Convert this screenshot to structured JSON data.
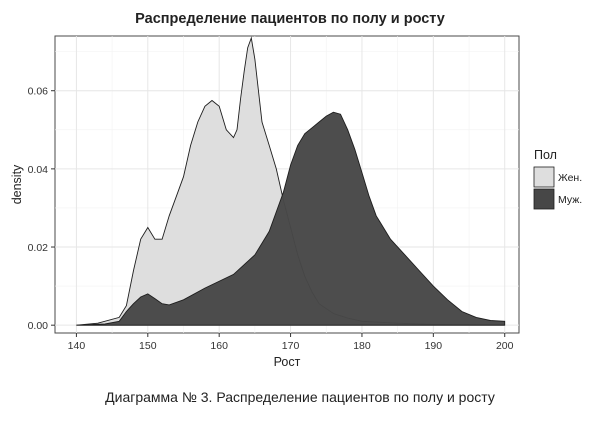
{
  "caption": "Диаграмма № 3. Распределение пациентов по полу и росту",
  "chart_data": {
    "type": "area",
    "title": "Распределение пациентов по полу и росту",
    "xlabel": "Рост",
    "ylabel": "density",
    "xlim": [
      137,
      202
    ],
    "ylim": [
      -0.002,
      0.074
    ],
    "xticks": [
      140,
      150,
      160,
      170,
      180,
      190,
      200
    ],
    "yticks": [
      0.0,
      0.02,
      0.04,
      0.06
    ],
    "ytick_labels": [
      "0.00",
      "0.02",
      "0.04",
      "0.06"
    ],
    "grid": true,
    "legend": {
      "title": "Пол",
      "position": "right"
    },
    "series": [
      {
        "name": "Жен.",
        "color": "#dedede",
        "x": [
          140,
          143,
          146,
          147,
          148,
          149,
          150,
          151,
          152,
          153,
          154,
          155,
          156,
          157,
          158,
          159,
          160,
          161,
          162,
          162.5,
          163,
          163.5,
          164,
          164.5,
          165,
          166,
          167,
          168,
          169,
          170,
          171,
          172,
          173,
          174,
          176,
          178,
          180,
          185,
          190,
          195,
          200
        ],
        "y": [
          0.0,
          0.0005,
          0.002,
          0.005,
          0.014,
          0.022,
          0.025,
          0.022,
          0.022,
          0.028,
          0.033,
          0.038,
          0.046,
          0.052,
          0.056,
          0.0575,
          0.056,
          0.05,
          0.048,
          0.05,
          0.058,
          0.065,
          0.071,
          0.0735,
          0.068,
          0.052,
          0.046,
          0.04,
          0.032,
          0.025,
          0.018,
          0.0125,
          0.0085,
          0.0055,
          0.003,
          0.0018,
          0.001,
          0.0005,
          0.0002,
          0.0001,
          0.0
        ]
      },
      {
        "name": "Муж.",
        "color": "#474747",
        "x": [
          140,
          144,
          146,
          147,
          148,
          149,
          150,
          151,
          152,
          153,
          155,
          158,
          162,
          165,
          167,
          169,
          170,
          171,
          172,
          173,
          174,
          175,
          176,
          177,
          178,
          179,
          180,
          181,
          182,
          184,
          186,
          188,
          190,
          192,
          194,
          196,
          198,
          200
        ],
        "y": [
          0.0,
          0.0003,
          0.001,
          0.0035,
          0.0055,
          0.0072,
          0.008,
          0.0068,
          0.0055,
          0.0052,
          0.0065,
          0.0095,
          0.013,
          0.018,
          0.024,
          0.034,
          0.041,
          0.046,
          0.049,
          0.0505,
          0.052,
          0.0535,
          0.0545,
          0.054,
          0.05,
          0.045,
          0.039,
          0.033,
          0.028,
          0.022,
          0.018,
          0.014,
          0.01,
          0.0065,
          0.0035,
          0.002,
          0.0012,
          0.001
        ]
      }
    ]
  }
}
